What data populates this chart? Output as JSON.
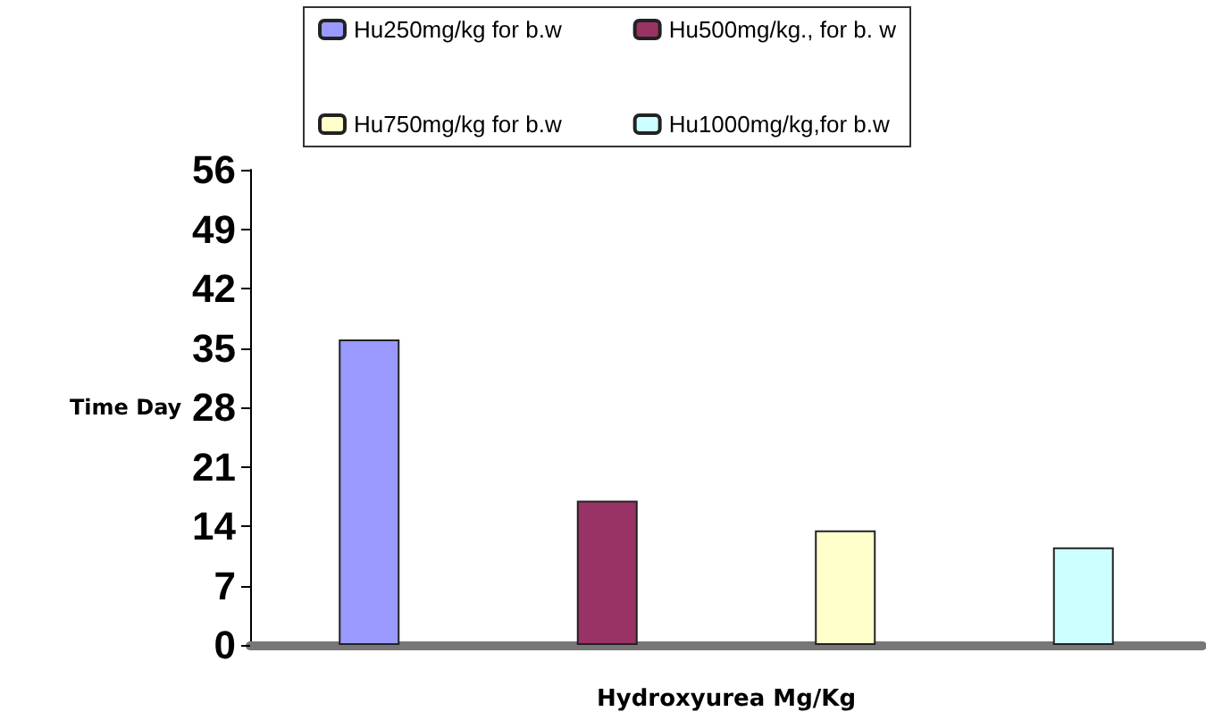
{
  "chart_data": {
    "type": "bar",
    "xlabel": "Hydroxyurea Mg/Kg",
    "ylabel": "Time Day",
    "categories": [
      null,
      null,
      null,
      null
    ],
    "series": [
      {
        "name": "Hu250mg/kg for b.w",
        "color": "#9999ff",
        "values": [
          36,
          null,
          null,
          null
        ]
      },
      {
        "name": "Hu500mg/kg., for b. w",
        "color": "#993366",
        "values": [
          null,
          17,
          null,
          null
        ]
      },
      {
        "name": "Hu750mg/kg for b.w",
        "color": "#ffffcc",
        "values": [
          null,
          null,
          13.5,
          null
        ]
      },
      {
        "name": "Hu1000mg/kg,for b.w",
        "color": "#ccffff",
        "values": [
          null,
          null,
          null,
          11.5
        ]
      }
    ],
    "ylim": [
      0,
      56
    ],
    "yticks": [
      0,
      7,
      14,
      21,
      28,
      35,
      42,
      49,
      56
    ],
    "grid": false,
    "legend": "top"
  }
}
